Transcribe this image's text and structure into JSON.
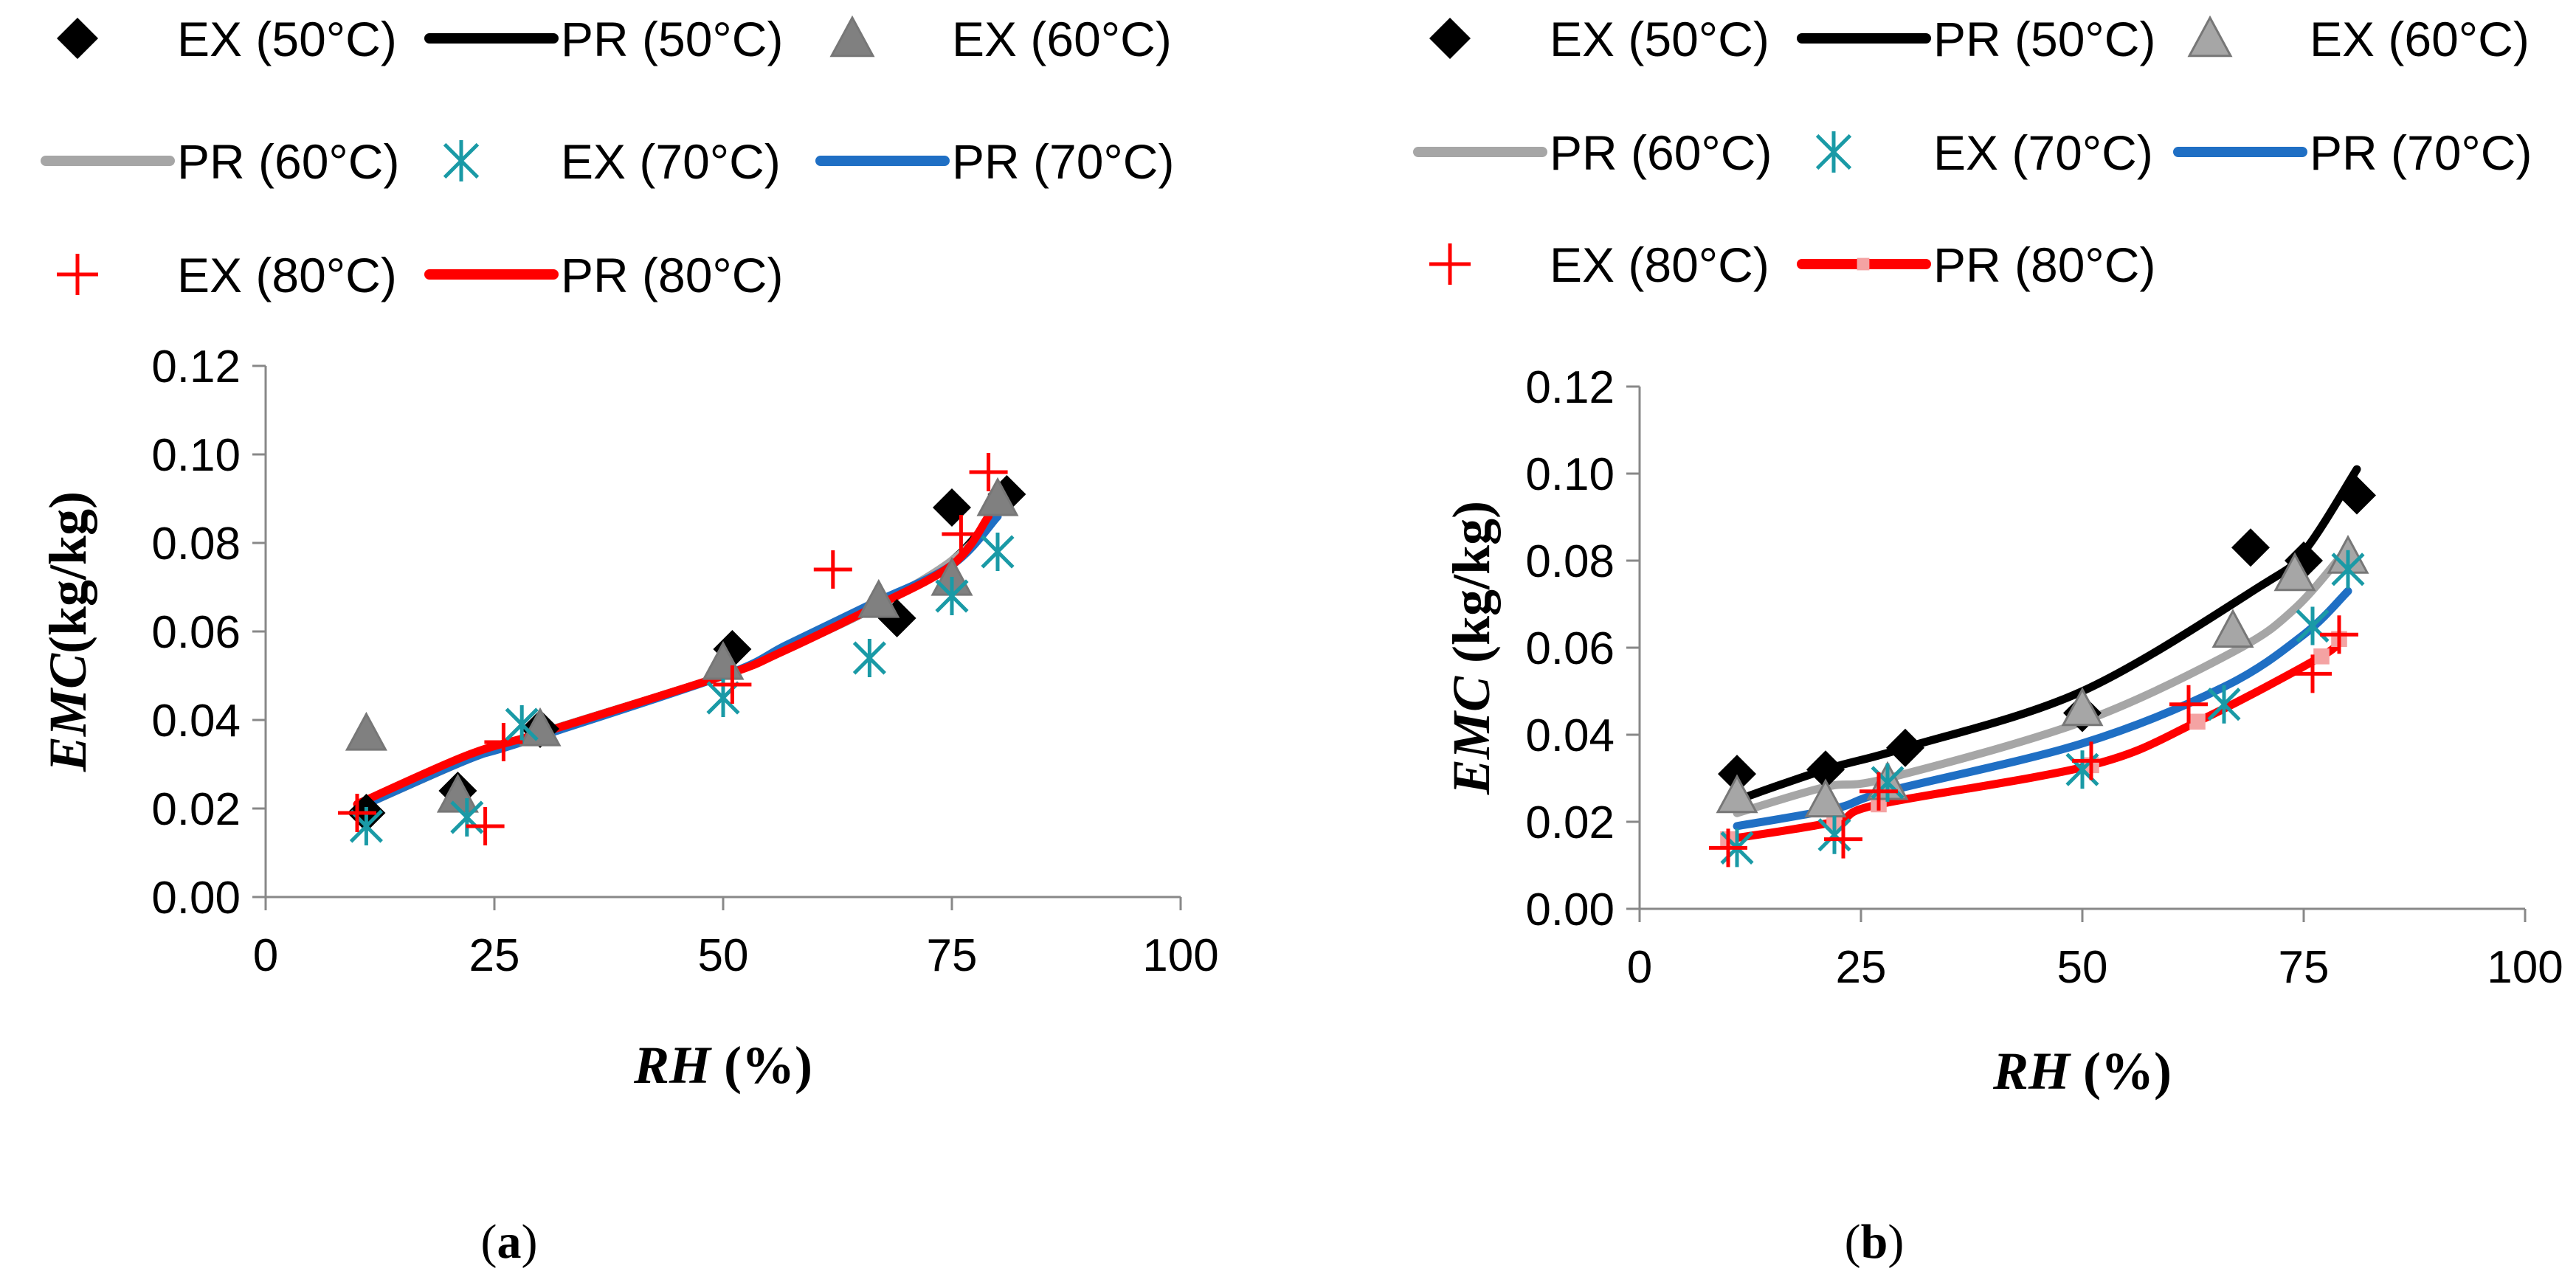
{
  "chart_data": [
    {
      "type": "scatter",
      "panel_label": "(a)",
      "xlabel": "RH (%)",
      "ylabel": "EMC(kg/kg)",
      "xlim": [
        0,
        100
      ],
      "ylim": [
        0,
        0.12
      ],
      "xticks": [
        "0",
        "25",
        "50",
        "75",
        "100"
      ],
      "yticks": [
        "0.00",
        "0.02",
        "0.04",
        "0.06",
        "0.08",
        "0.10",
        "0.12"
      ],
      "grid": false,
      "legend": "top",
      "series": [
        {
          "name": "EX (50°C)",
          "kind": "points",
          "marker": "diamond",
          "color": "#000000",
          "x": [
            11,
            21,
            30,
            51,
            69,
            75,
            81
          ],
          "y": [
            0.019,
            0.024,
            0.038,
            0.056,
            0.063,
            0.088,
            0.091
          ]
        },
        {
          "name": "PR (50°C)",
          "kind": "line",
          "color": "#000000",
          "x": [
            11,
            22,
            30,
            50,
            58,
            68,
            75,
            79
          ],
          "y": [
            0.021,
            0.031,
            0.037,
            0.05,
            0.057,
            0.067,
            0.076,
            0.085
          ]
        },
        {
          "name": "EX (60°C)",
          "kind": "points",
          "marker": "triangle",
          "color": "#808080",
          "x": [
            11,
            21,
            30,
            50,
            67,
            75,
            80
          ],
          "y": [
            0.037,
            0.023,
            0.038,
            0.053,
            0.067,
            0.072,
            0.09
          ]
        },
        {
          "name": "PR (60°C)",
          "kind": "line",
          "color": "#a6a6a6",
          "x": [
            11,
            22,
            30,
            50,
            58,
            67,
            75,
            80
          ],
          "y": [
            0.021,
            0.031,
            0.037,
            0.05,
            0.057,
            0.066,
            0.076,
            0.086
          ]
        },
        {
          "name": "EX (70°C)",
          "kind": "points",
          "marker": "asterisk",
          "color": "#1a9aa6",
          "x": [
            11,
            22,
            28,
            50,
            66,
            75,
            80
          ],
          "y": [
            0.016,
            0.018,
            0.039,
            0.045,
            0.054,
            0.068,
            0.078
          ]
        },
        {
          "name": "PR (70°C)",
          "kind": "line",
          "color": "#1f6fc4",
          "x": [
            11,
            22,
            28,
            50,
            57,
            66,
            75,
            80
          ],
          "y": [
            0.021,
            0.031,
            0.035,
            0.05,
            0.057,
            0.066,
            0.075,
            0.086
          ]
        },
        {
          "name": "EX (80°C)",
          "kind": "points",
          "marker": "plus",
          "color": "#ff0000",
          "x": [
            10,
            24,
            26,
            51,
            62,
            76,
            79
          ],
          "y": [
            0.019,
            0.016,
            0.035,
            0.048,
            0.074,
            0.082,
            0.096
          ]
        },
        {
          "name": "PR (80°C)",
          "kind": "line",
          "color": "#ff0000",
          "x": [
            10,
            22,
            30,
            50,
            56,
            66,
            75,
            79
          ],
          "y": [
            0.021,
            0.032,
            0.037,
            0.05,
            0.055,
            0.065,
            0.075,
            0.086
          ]
        }
      ]
    },
    {
      "type": "scatter",
      "panel_label": "(b)",
      "xlabel": "RH (%)",
      "ylabel": "EMC (kg/kg)",
      "xlim": [
        0,
        100
      ],
      "ylim": [
        0,
        0.12
      ],
      "xticks": [
        "0",
        "25",
        "50",
        "75",
        "100"
      ],
      "yticks": [
        "0.00",
        "0.02",
        "0.04",
        "0.06",
        "0.08",
        "0.10",
        "0.12"
      ],
      "grid": false,
      "legend": "top",
      "series": [
        {
          "name": "EX (50°C)",
          "kind": "points",
          "marker": "diamond",
          "color": "#000000",
          "x": [
            11,
            21,
            30,
            50,
            69,
            75,
            81
          ],
          "y": [
            0.031,
            0.032,
            0.037,
            0.045,
            0.083,
            0.08,
            0.095
          ]
        },
        {
          "name": "PR (50°C)",
          "kind": "line",
          "color": "#000000",
          "x": [
            11,
            21,
            30,
            50,
            70,
            75,
            81
          ],
          "y": [
            0.025,
            0.032,
            0.037,
            0.05,
            0.074,
            0.082,
            0.101
          ]
        },
        {
          "name": "EX (60°C)",
          "kind": "points",
          "marker": "triangle",
          "color": "#a6a6a6",
          "x": [
            11,
            21,
            28,
            50,
            67,
            74,
            80
          ],
          "y": [
            0.026,
            0.025,
            0.029,
            0.046,
            0.064,
            0.077,
            0.081
          ]
        },
        {
          "name": "PR (60°C)",
          "kind": "line",
          "color": "#a6a6a6",
          "x": [
            11,
            21,
            28,
            50,
            67,
            74,
            80
          ],
          "y": [
            0.022,
            0.028,
            0.03,
            0.043,
            0.059,
            0.069,
            0.083
          ]
        },
        {
          "name": "EX (70°C)",
          "kind": "points",
          "marker": "asterisk",
          "color": "#1a9aa6",
          "x": [
            11,
            22,
            28,
            50,
            66,
            76,
            80
          ],
          "y": [
            0.014,
            0.017,
            0.029,
            0.032,
            0.047,
            0.065,
            0.078
          ]
        },
        {
          "name": "PR (70°C)",
          "kind": "line",
          "color": "#1f6fc4",
          "x": [
            11,
            22,
            28,
            50,
            66,
            75,
            80
          ],
          "y": [
            0.019,
            0.023,
            0.027,
            0.038,
            0.051,
            0.063,
            0.073
          ]
        },
        {
          "name": "EX (80°C)",
          "kind": "points",
          "marker": "plus",
          "color": "#ff0000",
          "x": [
            10,
            23,
            27,
            51,
            62,
            76,
            79
          ],
          "y": [
            0.014,
            0.016,
            0.027,
            0.034,
            0.047,
            0.054,
            0.063
          ]
        },
        {
          "name": "PR (80°C)",
          "kind": "line",
          "color": "#ff0000",
          "marker": "square",
          "marker_color": "#f4a3a3",
          "x": [
            10,
            22,
            27,
            51,
            63,
            77,
            79
          ],
          "y": [
            0.016,
            0.02,
            0.024,
            0.033,
            0.043,
            0.058,
            0.062
          ]
        }
      ]
    }
  ]
}
